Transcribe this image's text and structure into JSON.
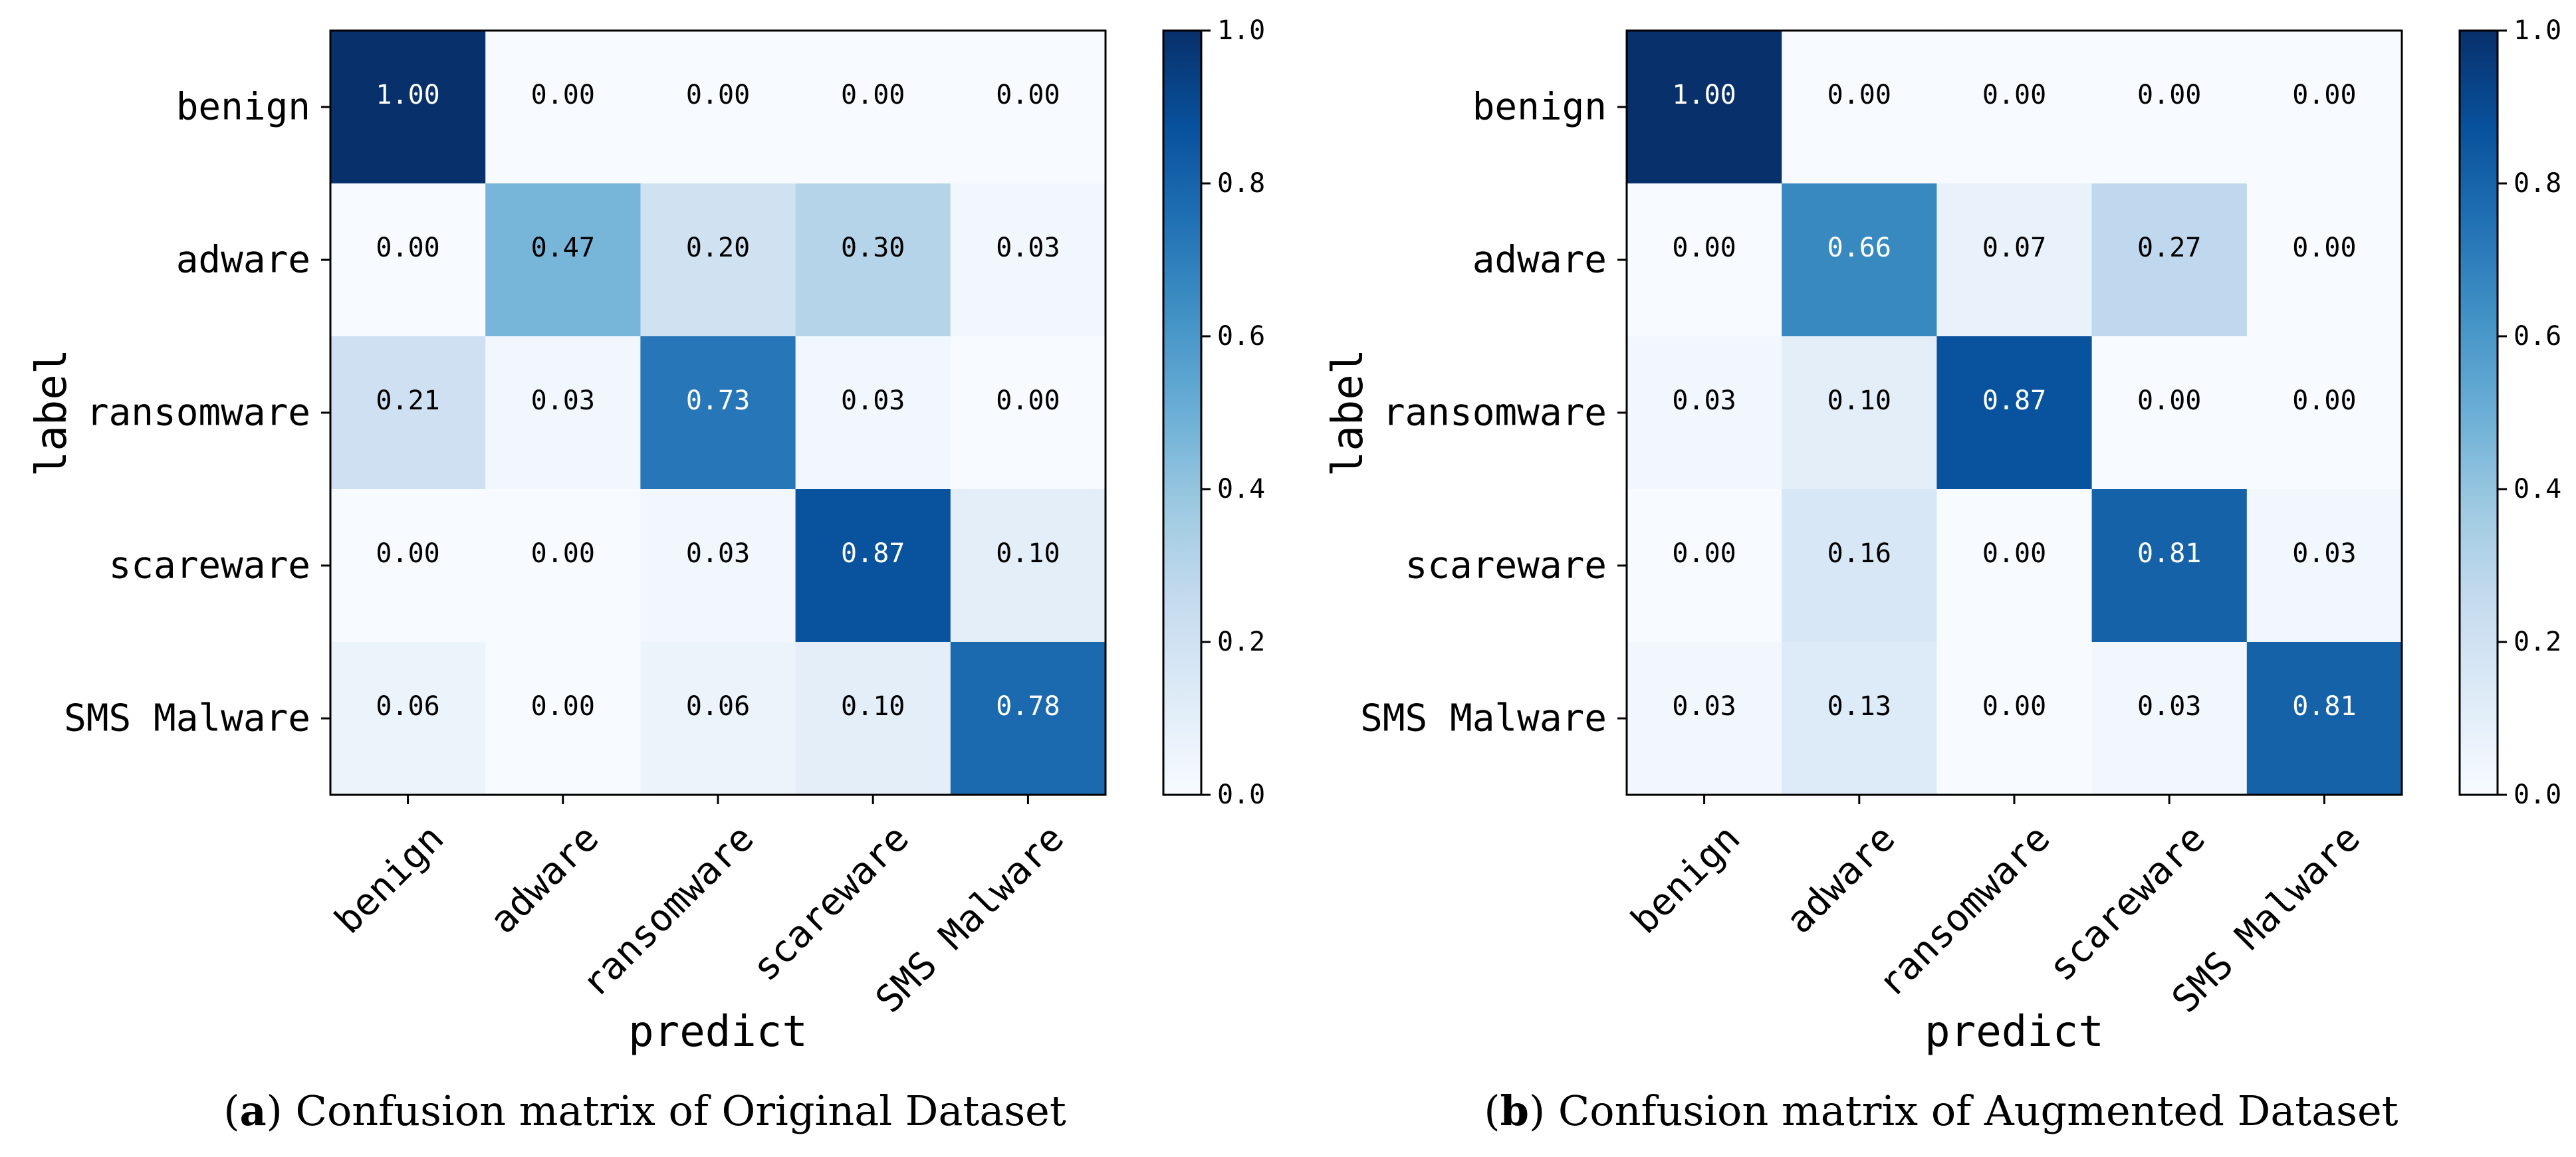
{
  "chart_data": [
    {
      "type": "heatmap",
      "panel_letter": "a",
      "caption": "Confusion matrix of Original Dataset",
      "xlabel": "predict",
      "ylabel": "label",
      "row_labels": [
        "benign",
        "adware",
        "ransomware",
        "scareware",
        "SMS Malware"
      ],
      "col_labels": [
        "benign",
        "adware",
        "ransomware",
        "scareware",
        "SMS Malware"
      ],
      "values": [
        [
          1.0,
          0.0,
          0.0,
          0.0,
          0.0
        ],
        [
          0.0,
          0.47,
          0.2,
          0.3,
          0.03
        ],
        [
          0.21,
          0.03,
          0.73,
          0.03,
          0.0
        ],
        [
          0.0,
          0.0,
          0.03,
          0.87,
          0.1
        ],
        [
          0.06,
          0.0,
          0.06,
          0.1,
          0.78
        ]
      ],
      "value_labels": [
        [
          "1.00",
          "0.00",
          "0.00",
          "0.00",
          "0.00"
        ],
        [
          "0.00",
          "0.47",
          "0.20",
          "0.30",
          "0.03"
        ],
        [
          "0.21",
          "0.03",
          "0.73",
          "0.03",
          "0.00"
        ],
        [
          "0.00",
          "0.00",
          "0.03",
          "0.87",
          "0.10"
        ],
        [
          "0.06",
          "0.00",
          "0.06",
          "0.10",
          "0.78"
        ]
      ],
      "colorbar": {
        "range": [
          0.0,
          1.0
        ],
        "ticks": [
          "0.0",
          "0.2",
          "0.4",
          "0.6",
          "0.8",
          "1.0"
        ],
        "cmap": "Blues"
      }
    },
    {
      "type": "heatmap",
      "panel_letter": "b",
      "caption": "Confusion matrix of Augmented Dataset",
      "xlabel": "predict",
      "ylabel": "label",
      "row_labels": [
        "benign",
        "adware",
        "ransomware",
        "scareware",
        "SMS Malware"
      ],
      "col_labels": [
        "benign",
        "adware",
        "ransomware",
        "scareware",
        "SMS Malware"
      ],
      "values": [
        [
          1.0,
          0.0,
          0.0,
          0.0,
          0.0
        ],
        [
          0.0,
          0.66,
          0.07,
          0.27,
          0.0
        ],
        [
          0.03,
          0.1,
          0.87,
          0.0,
          0.0
        ],
        [
          0.0,
          0.16,
          0.0,
          0.81,
          0.03
        ],
        [
          0.03,
          0.13,
          0.0,
          0.03,
          0.81
        ]
      ],
      "value_labels": [
        [
          "1.00",
          "0.00",
          "0.00",
          "0.00",
          "0.00"
        ],
        [
          "0.00",
          "0.66",
          "0.07",
          "0.27",
          "0.00"
        ],
        [
          "0.03",
          "0.10",
          "0.87",
          "0.00",
          "0.00"
        ],
        [
          "0.00",
          "0.16",
          "0.00",
          "0.81",
          "0.03"
        ],
        [
          "0.03",
          "0.13",
          "0.00",
          "0.03",
          "0.81"
        ]
      ],
      "colorbar": {
        "range": [
          0.0,
          1.0
        ],
        "ticks": [
          "0.0",
          "0.2",
          "0.4",
          "0.6",
          "0.8",
          "1.0"
        ],
        "cmap": "Blues"
      }
    }
  ]
}
